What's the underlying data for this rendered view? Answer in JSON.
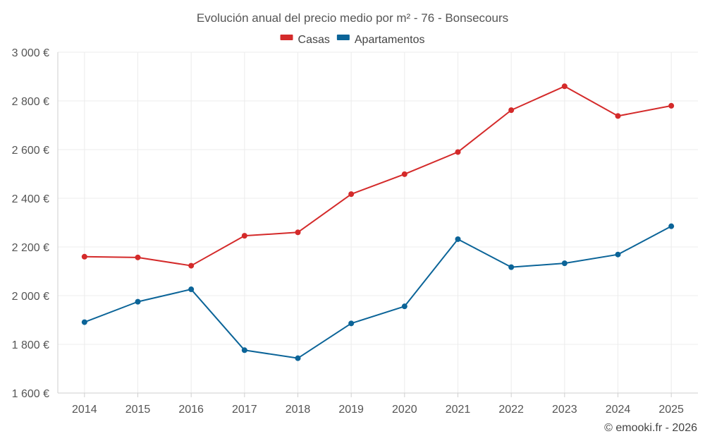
{
  "chart_data": {
    "type": "line",
    "title": "Evolución anual del precio medio por m² - 76 - Bonsecours",
    "categories": [
      "2014",
      "2015",
      "2016",
      "2017",
      "2018",
      "2019",
      "2020",
      "2021",
      "2022",
      "2023",
      "2024",
      "2025"
    ],
    "series": [
      {
        "name": "Casas",
        "color": "#d42a2a",
        "values": [
          2160,
          2157,
          2123,
          2246,
          2260,
          2417,
          2499,
          2590,
          2762,
          2860,
          2738,
          2780
        ]
      },
      {
        "name": "Apartamentos",
        "color": "#0b6498",
        "values": [
          1891,
          1975,
          2026,
          1776,
          1743,
          1886,
          1956,
          2232,
          2117,
          2133,
          2169,
          2285
        ]
      }
    ],
    "ylim": [
      1600,
      3000
    ],
    "yticks": [
      1600,
      1800,
      2000,
      2200,
      2400,
      2600,
      2800,
      3000
    ],
    "ytick_labels": [
      "1 600 €",
      "1 800 €",
      "2 000 €",
      "2 200 €",
      "2 400 €",
      "2 600 €",
      "2 800 €",
      "3 000 €"
    ],
    "grid": true,
    "legend_position": "top-center",
    "xlabel": "",
    "ylabel": ""
  },
  "credit": "© emooki.fr - 2026"
}
